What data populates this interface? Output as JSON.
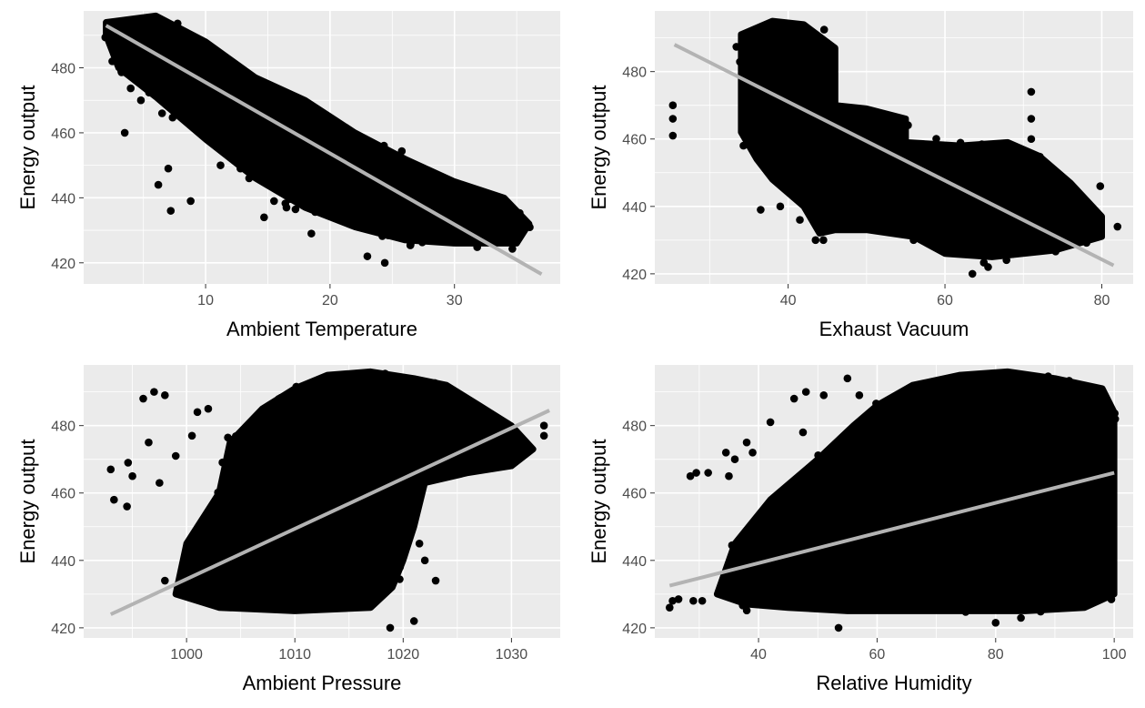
{
  "chart_data": [
    {
      "type": "scatter",
      "xlabel": "Ambient Temperature",
      "ylabel": "Energy output",
      "xlim": [
        0.2,
        38.5
      ],
      "ylim": [
        413.5,
        497.5
      ],
      "xticks": [
        10,
        20,
        30
      ],
      "xminor": [
        5,
        15,
        25,
        35
      ],
      "yticks": [
        420,
        440,
        460,
        480
      ],
      "yminor": [
        430,
        450,
        470,
        490
      ],
      "grid": true,
      "trend_line": {
        "color": "#b3b3b3",
        "points": [
          [
            2,
            493
          ],
          [
            37,
            416.5
          ]
        ]
      },
      "cloud": [
        [
          [
            2,
            494
          ],
          [
            6,
            496
          ],
          [
            10,
            488
          ],
          [
            14,
            477
          ],
          [
            18,
            470
          ],
          [
            22,
            460
          ],
          [
            26,
            452
          ],
          [
            30,
            445
          ],
          [
            34,
            440
          ],
          [
            36,
            432
          ],
          [
            35,
            426
          ],
          [
            30,
            426
          ],
          [
            26,
            427
          ],
          [
            22,
            431
          ],
          [
            18,
            437
          ],
          [
            14,
            446
          ],
          [
            10,
            458
          ],
          [
            6,
            471
          ],
          [
            3,
            480
          ],
          [
            2,
            490
          ]
        ]
      ],
      "points": [
        [
          3.5,
          460
        ],
        [
          6.2,
          444
        ],
        [
          7,
          449
        ],
        [
          7.2,
          436
        ],
        [
          8.8,
          439
        ],
        [
          11.2,
          450
        ],
        [
          12.8,
          449
        ],
        [
          13.5,
          446
        ],
        [
          14.7,
          434
        ],
        [
          15.5,
          439
        ],
        [
          16.5,
          437
        ],
        [
          18.5,
          429
        ],
        [
          23,
          422
        ],
        [
          24.4,
          420
        ],
        [
          4.8,
          470
        ],
        [
          6.5,
          466
        ],
        [
          9.2,
          461
        ],
        [
          26,
          447
        ],
        [
          2.5,
          482
        ]
      ],
      "title": ""
    },
    {
      "type": "scatter",
      "xlabel": "Exhaust Vacuum",
      "ylabel": "Energy output",
      "xlim": [
        23,
        84
      ],
      "ylim": [
        417,
        498
      ],
      "xticks": [
        40,
        60,
        80
      ],
      "xminor": [
        30,
        50,
        70
      ],
      "yticks": [
        420,
        440,
        460,
        480
      ],
      "yminor": [
        430,
        450,
        470,
        490
      ],
      "grid": true,
      "trend_line": {
        "color": "#b3b3b3",
        "points": [
          [
            25.5,
            488
          ],
          [
            81.5,
            422.5
          ]
        ]
      },
      "cloud": [
        [
          [
            34,
            491
          ],
          [
            38,
            495
          ],
          [
            42,
            494
          ],
          [
            46,
            487
          ],
          [
            46,
            470
          ],
          [
            50,
            469
          ],
          [
            55,
            466
          ],
          [
            55,
            459
          ],
          [
            62,
            458
          ],
          [
            68,
            459
          ],
          [
            72,
            455
          ],
          [
            76,
            447
          ],
          [
            80,
            437
          ],
          [
            80,
            431
          ],
          [
            74,
            427
          ],
          [
            66,
            425
          ],
          [
            60,
            426
          ],
          [
            56,
            431
          ],
          [
            50,
            433
          ],
          [
            46,
            433
          ],
          [
            44,
            432
          ],
          [
            42,
            440
          ],
          [
            38,
            448
          ],
          [
            36,
            454
          ],
          [
            34,
            462
          ],
          [
            34,
            478
          ]
        ]
      ],
      "points": [
        [
          25.3,
          470
        ],
        [
          25.3,
          466
        ],
        [
          25.3,
          461
        ],
        [
          36.5,
          439
        ],
        [
          39,
          440
        ],
        [
          41.5,
          436
        ],
        [
          43.5,
          430
        ],
        [
          44.5,
          430
        ],
        [
          56,
          430
        ],
        [
          63.5,
          420
        ],
        [
          65.5,
          422
        ],
        [
          71,
          474
        ],
        [
          71,
          466
        ],
        [
          71,
          460
        ],
        [
          79.8,
          446
        ],
        [
          82,
          434
        ],
        [
          57,
          434
        ],
        [
          59,
          432
        ],
        [
          67,
          426
        ]
      ],
      "title": ""
    },
    {
      "type": "scatter",
      "xlabel": "Ambient Pressure",
      "ylabel": "Energy output",
      "xlim": [
        990.5,
        1034.5
      ],
      "ylim": [
        417,
        498
      ],
      "xticks": [
        1000,
        1010,
        1020,
        1030
      ],
      "xminor": [
        995,
        1005,
        1015,
        1025
      ],
      "yticks": [
        420,
        440,
        460,
        480
      ],
      "yminor": [
        430,
        450,
        470,
        490
      ],
      "grid": true,
      "trend_line": {
        "color": "#b3b3b3",
        "points": [
          [
            993,
            424
          ],
          [
            1033.5,
            484.5
          ]
        ]
      },
      "cloud": [
        [
          [
            999,
            430
          ],
          [
            1000,
            445
          ],
          [
            1003,
            460
          ],
          [
            1004,
            475
          ],
          [
            1007,
            485
          ],
          [
            1010,
            491
          ],
          [
            1013,
            495
          ],
          [
            1017,
            496
          ],
          [
            1021,
            494
          ],
          [
            1024,
            492
          ],
          [
            1027,
            486
          ],
          [
            1030,
            480
          ],
          [
            1032,
            473
          ],
          [
            1030,
            468
          ],
          [
            1026,
            466
          ],
          [
            1022,
            463
          ],
          [
            1021,
            450
          ],
          [
            1020,
            440
          ],
          [
            1019,
            432
          ],
          [
            1017,
            426
          ],
          [
            1010,
            425
          ],
          [
            1003,
            426
          ]
        ]
      ],
      "points": [
        [
          993,
          467
        ],
        [
          993.3,
          458
        ],
        [
          994.5,
          456
        ],
        [
          994.6,
          469
        ],
        [
          996,
          488
        ],
        [
          997,
          490
        ],
        [
          998,
          489
        ],
        [
          996.5,
          475
        ],
        [
          995,
          465
        ],
        [
          997.5,
          463
        ],
        [
          999,
          471
        ],
        [
          1000.5,
          477
        ],
        [
          1001,
          484
        ],
        [
          1002,
          485
        ],
        [
          998,
          434
        ],
        [
          1018.8,
          420
        ],
        [
          1021,
          422
        ],
        [
          1023,
          434
        ],
        [
          1021.5,
          445
        ],
        [
          1022,
          440
        ],
        [
          1031,
          475
        ],
        [
          1033,
          480
        ],
        [
          1033,
          477
        ]
      ],
      "title": ""
    },
    {
      "type": "scatter",
      "xlabel": "Relative Humidity",
      "ylabel": "Energy output",
      "xlim": [
        22.5,
        103.2
      ],
      "ylim": [
        417,
        498
      ],
      "xticks": [
        40,
        60,
        80,
        100
      ],
      "xminor": [
        30,
        50,
        70,
        90
      ],
      "yticks": [
        420,
        440,
        460,
        480
      ],
      "yminor": [
        430,
        450,
        470,
        490
      ],
      "grid": true,
      "trend_line": {
        "color": "#b3b3b3",
        "points": [
          [
            25,
            432.5
          ],
          [
            100,
            466
          ]
        ]
      },
      "cloud": [
        [
          [
            33,
            430
          ],
          [
            36,
            445
          ],
          [
            42,
            458
          ],
          [
            50,
            470
          ],
          [
            56,
            480
          ],
          [
            60,
            486
          ],
          [
            66,
            492
          ],
          [
            74,
            495
          ],
          [
            82,
            496
          ],
          [
            90,
            494
          ],
          [
            98,
            491
          ],
          [
            100,
            484
          ],
          [
            100,
            445
          ],
          [
            100,
            430
          ],
          [
            95,
            426
          ],
          [
            85,
            425
          ],
          [
            70,
            425
          ],
          [
            55,
            425
          ],
          [
            45,
            426
          ],
          [
            38,
            427
          ]
        ]
      ],
      "points": [
        [
          25,
          426
        ],
        [
          25.5,
          428
        ],
        [
          26.5,
          428.5
        ],
        [
          29,
          428
        ],
        [
          30.5,
          428
        ],
        [
          28.5,
          465
        ],
        [
          29.5,
          466
        ],
        [
          31.5,
          466
        ],
        [
          35,
          465
        ],
        [
          34.5,
          472
        ],
        [
          36,
          470
        ],
        [
          39,
          472
        ],
        [
          42,
          481
        ],
        [
          46,
          488
        ],
        [
          48,
          490
        ],
        [
          51,
          489
        ],
        [
          55,
          494
        ],
        [
          57,
          489
        ],
        [
          53.5,
          420
        ],
        [
          80,
          421.5
        ],
        [
          47.5,
          478
        ],
        [
          38,
          475
        ]
      ],
      "title": ""
    }
  ]
}
